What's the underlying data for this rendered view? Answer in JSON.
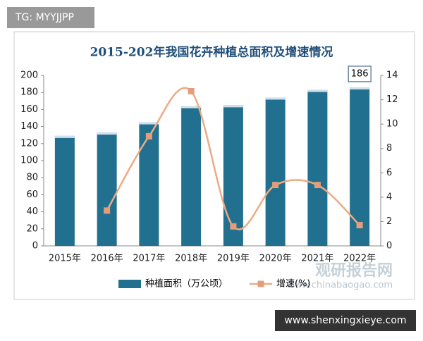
{
  "chart_data": {
    "type": "bar_line",
    "title": "2015-202年我国花卉种植总面积及增速情况",
    "categories": [
      "2015年",
      "2016年",
      "2017年",
      "2018年",
      "2019年",
      "2020年",
      "2021年",
      "2022年"
    ],
    "series": [
      {
        "name": "种植面积（万公顷）",
        "type": "bar",
        "color": "#22708f",
        "values": [
          129,
          133,
          145,
          164,
          165,
          174,
          183,
          186
        ],
        "value_labels": [
          null,
          null,
          null,
          null,
          null,
          null,
          null,
          "186"
        ]
      },
      {
        "name": "增速(%)",
        "type": "line",
        "axis": "y2",
        "color": "#eeaa84",
        "values": [
          null,
          2.9,
          9.0,
          12.7,
          1.6,
          5.0,
          5.0,
          1.7
        ]
      }
    ],
    "ylim": [
      0,
      200
    ],
    "yticks": [
      0,
      20,
      40,
      60,
      80,
      100,
      120,
      140,
      160,
      180,
      200
    ],
    "y2lim": [
      0,
      14
    ],
    "y2ticks": [
      0,
      2,
      4,
      6,
      8,
      10,
      12,
      14
    ],
    "legend": "bottom"
  },
  "watermarks": {
    "top_left": "TG: MYYJJPP",
    "bottom_right": "www.shenxingxieye.com",
    "logo": "观研报告网",
    "logo_url": "www.chinabaogao.com"
  }
}
